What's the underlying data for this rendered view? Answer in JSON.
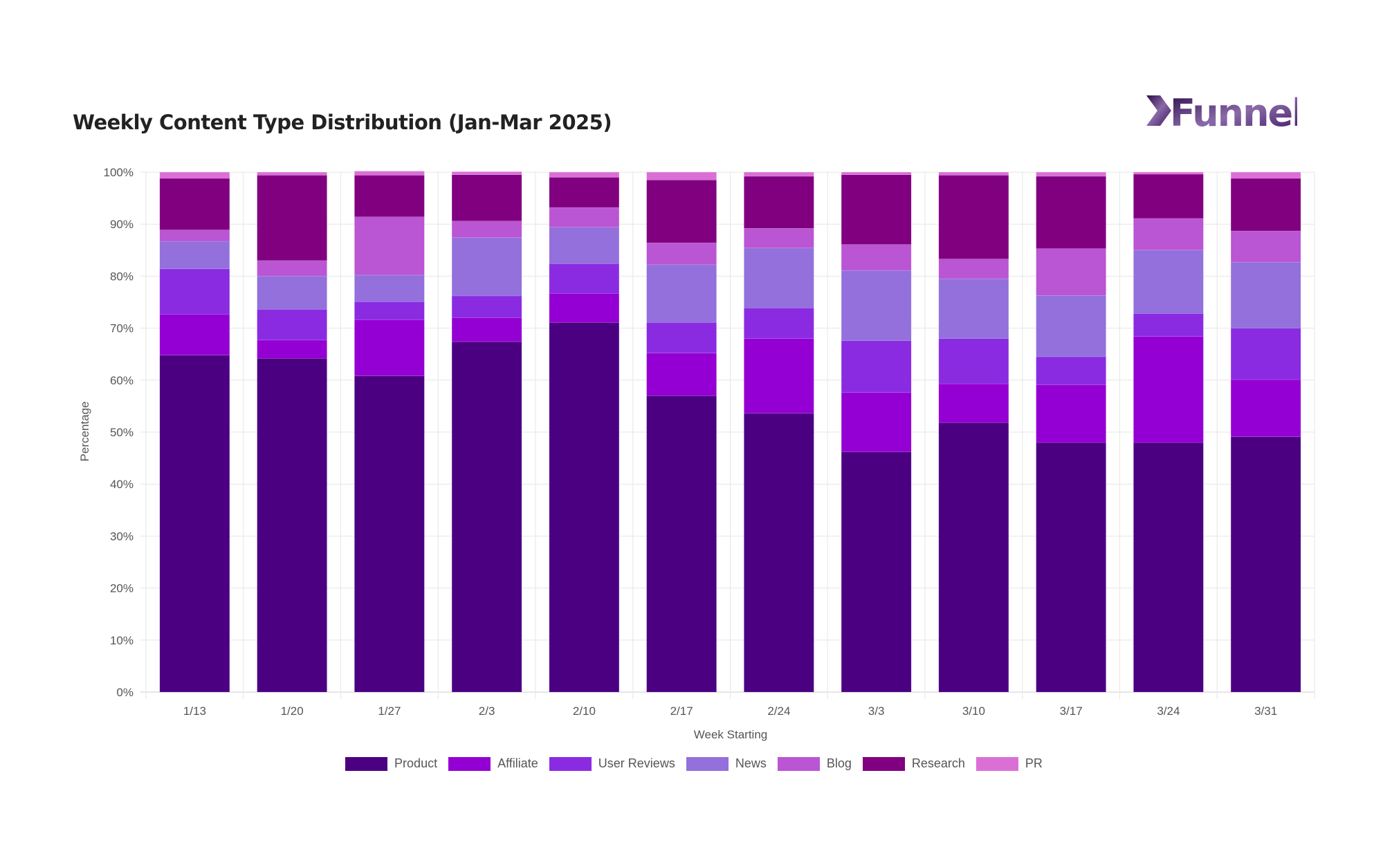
{
  "logo_text": "Funnel",
  "chart_data": {
    "type": "bar",
    "stacked": true,
    "title": "Weekly Content Type Distribution (Jan-Mar 2025)",
    "xlabel": "Week Starting",
    "ylabel": "Percentage",
    "ylim": [
      0,
      100
    ],
    "yticks": [
      "0%",
      "10%",
      "20%",
      "30%",
      "40%",
      "50%",
      "60%",
      "70%",
      "80%",
      "90%",
      "100%"
    ],
    "grid": true,
    "legend_position": "bottom",
    "categories": [
      "1/13",
      "1/20",
      "1/27",
      "2/3",
      "2/10",
      "2/17",
      "2/24",
      "3/3",
      "3/10",
      "3/17",
      "3/24",
      "3/31"
    ],
    "series": [
      {
        "name": "Product",
        "color": "#4b0082",
        "values": [
          64.8,
          64.2,
          60.8,
          67.4,
          71.1,
          57.0,
          53.6,
          46.2,
          51.8,
          48.0,
          48.0,
          49.1
        ]
      },
      {
        "name": "Affiliate",
        "color": "#9400d3",
        "values": [
          7.9,
          3.5,
          10.8,
          4.6,
          5.6,
          8.2,
          14.4,
          11.4,
          7.5,
          11.1,
          20.4,
          11.0
        ]
      },
      {
        "name": "User Reviews",
        "color": "#8a2be2",
        "values": [
          8.7,
          5.9,
          3.5,
          4.2,
          5.7,
          5.9,
          5.9,
          10.0,
          8.7,
          5.4,
          4.4,
          9.9
        ]
      },
      {
        "name": "News",
        "color": "#9370db",
        "values": [
          5.3,
          6.4,
          5.1,
          11.2,
          7.0,
          11.1,
          11.5,
          13.5,
          11.5,
          11.8,
          12.2,
          12.7
        ]
      },
      {
        "name": "Blog",
        "color": "#ba55d3",
        "values": [
          2.2,
          3.0,
          11.2,
          3.2,
          3.8,
          4.2,
          3.8,
          5.0,
          3.8,
          9.0,
          6.1,
          6.0
        ]
      },
      {
        "name": "Research",
        "color": "#800080",
        "values": [
          9.9,
          16.4,
          8.0,
          8.9,
          5.8,
          12.1,
          10.0,
          13.4,
          16.1,
          13.9,
          8.5,
          10.1
        ]
      },
      {
        "name": "PR",
        "color": "#da70d6",
        "values": [
          1.2,
          0.6,
          0.8,
          0.6,
          1.0,
          1.5,
          0.8,
          0.5,
          0.6,
          0.8,
          0.4,
          1.2
        ]
      }
    ]
  }
}
